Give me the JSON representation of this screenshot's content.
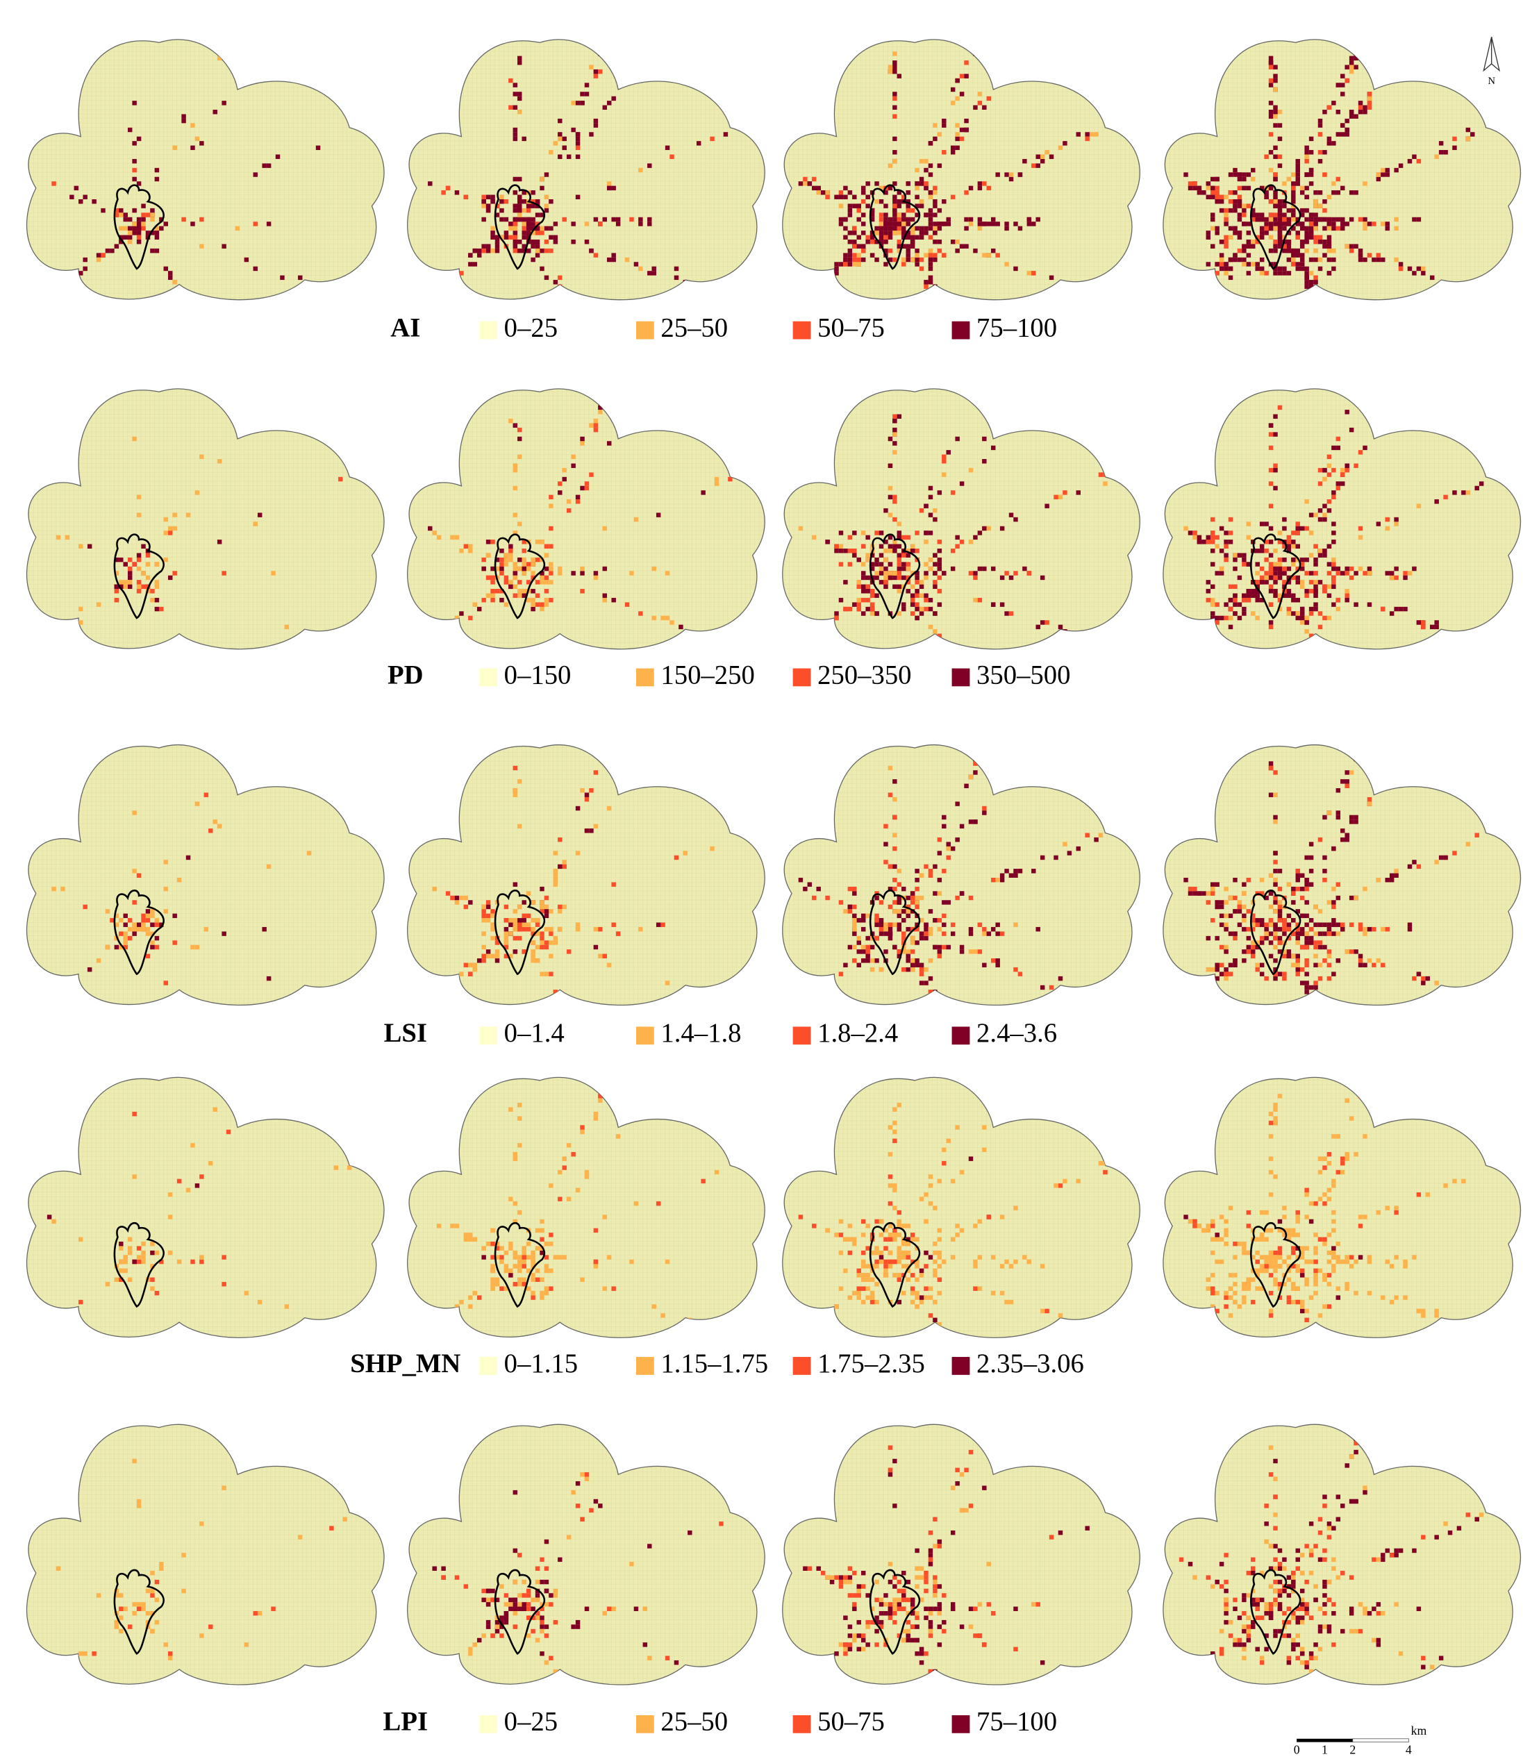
{
  "rows": [
    {
      "metric": "AI",
      "legend": [
        {
          "label": "0–25",
          "color": "#ffffcc"
        },
        {
          "label": "25–50",
          "color": "#feb24c"
        },
        {
          "label": "50–75",
          "color": "#fc4e2a"
        },
        {
          "label": "75–100",
          "color": "#800026"
        }
      ]
    },
    {
      "metric": "PD",
      "legend": [
        {
          "label": "0–150",
          "color": "#ffffcc"
        },
        {
          "label": "150–250",
          "color": "#feb24c"
        },
        {
          "label": "250–350",
          "color": "#fc4e2a"
        },
        {
          "label": "350–500",
          "color": "#800026"
        }
      ]
    },
    {
      "metric": "LSI",
      "legend": [
        {
          "label": "0–1.4",
          "color": "#ffffcc"
        },
        {
          "label": "1.4–1.8",
          "color": "#feb24c"
        },
        {
          "label": "1.8–2.4",
          "color": "#fc4e2a"
        },
        {
          "label": "2.4–3.6",
          "color": "#800026"
        }
      ]
    },
    {
      "metric": "SHP_MN",
      "legend": [
        {
          "label": "0–1.15",
          "color": "#ffffcc"
        },
        {
          "label": "1.15–1.75",
          "color": "#feb24c"
        },
        {
          "label": "1.75–2.35",
          "color": "#fc4e2a"
        },
        {
          "label": "2.35–3.06",
          "color": "#800026"
        }
      ]
    },
    {
      "metric": "LPI",
      "legend": [
        {
          "label": "0–25",
          "color": "#ffffcc"
        },
        {
          "label": "25–50",
          "color": "#feb24c"
        },
        {
          "label": "50–75",
          "color": "#fc4e2a"
        },
        {
          "label": "75–100",
          "color": "#800026"
        }
      ]
    }
  ],
  "north": "N",
  "scale_bar": {
    "ticks": [
      "0",
      "1",
      "2",
      "4"
    ],
    "unit": "km"
  }
}
